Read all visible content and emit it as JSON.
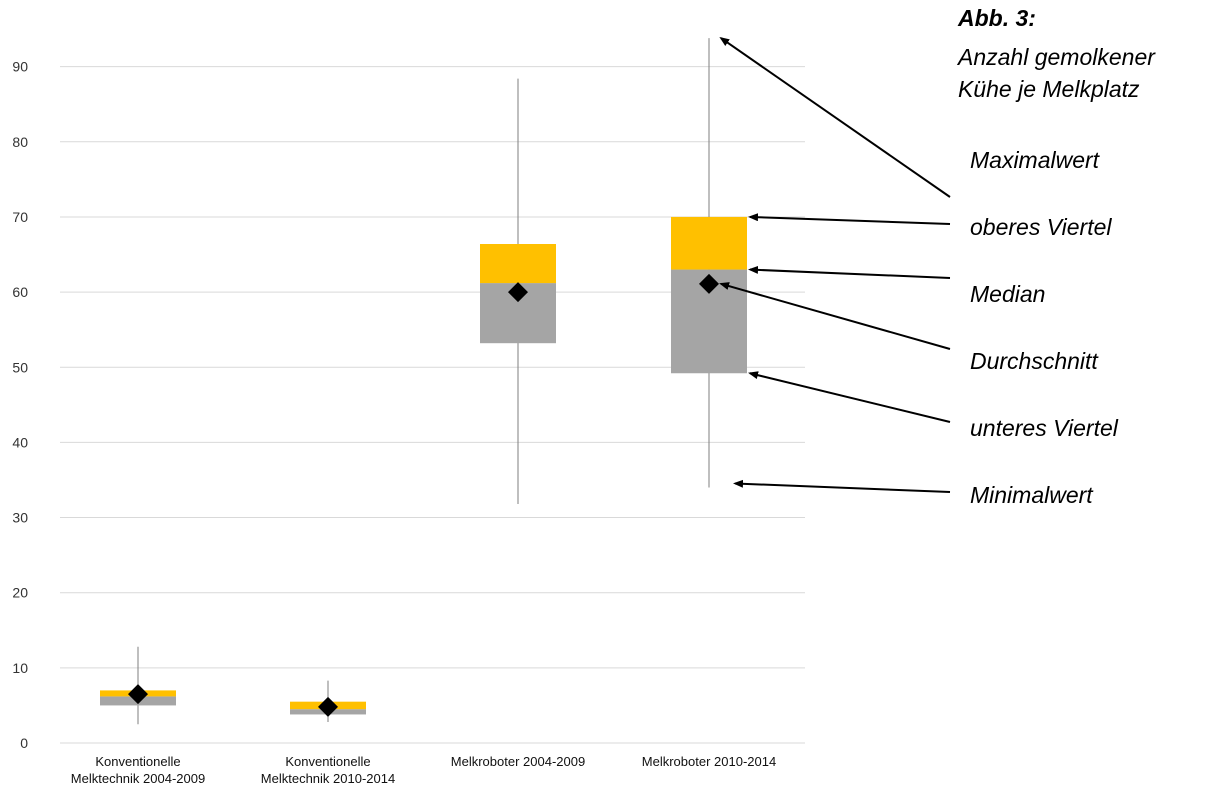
{
  "chart_data": {
    "type": "box",
    "title": "Abb. 3:",
    "subtitle_lines": [
      "Anzahl gemolkener",
      "Kühe je Melkplatz"
    ],
    "xlabel": "",
    "ylabel": "",
    "ylim": [
      0,
      90
    ],
    "yticks": [
      "0",
      "10",
      "20",
      "30",
      "40",
      "50",
      "60",
      "70",
      "80",
      "90"
    ],
    "grid": true,
    "categories": [
      {
        "lines": [
          "Konventionelle",
          "Melktechnik 2004-2009"
        ]
      },
      {
        "lines": [
          "Konventionelle",
          "Melktechnik 2010-2014"
        ]
      },
      {
        "lines": [
          "Melkroboter 2004-2009"
        ]
      },
      {
        "lines": [
          "Melkroboter 2010-2014"
        ]
      }
    ],
    "boxes": [
      {
        "min": 2.5,
        "q1": 5.0,
        "median": 6.2,
        "q3": 7.0,
        "max": 12.8,
        "mean": 6.5
      },
      {
        "min": 2.8,
        "q1": 3.8,
        "median": 4.5,
        "q3": 5.5,
        "max": 8.3,
        "mean": 4.8
      },
      {
        "min": 31.8,
        "q1": 53.2,
        "median": 61.2,
        "q3": 66.4,
        "max": 88.4,
        "mean": 60.0
      },
      {
        "min": 34.0,
        "q1": 49.2,
        "median": 63.0,
        "q3": 70.0,
        "max": 93.8,
        "mean": 61.1
      }
    ],
    "legend": {
      "placement": "right",
      "labels": [
        "Maximalwert",
        "oberes Viertel",
        "Median",
        "Durchschnitt",
        "unteres Viertel",
        "Minimalwert"
      ]
    },
    "colors": {
      "upper_quartile": "#FFC000",
      "lower_quartile": "#A5A5A5",
      "whisker": "#7F7F7F",
      "grid": "#D9D9D9",
      "mean_marker": "#000000"
    }
  }
}
